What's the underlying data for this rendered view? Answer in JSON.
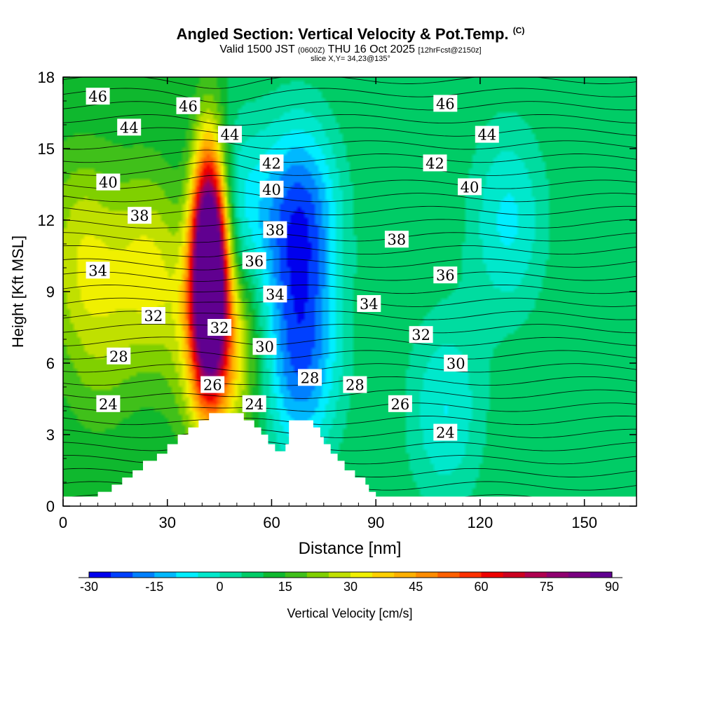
{
  "header": {
    "title": "Angled Section: Vertical Velocity & Pot.Temp.",
    "title_unit": "(C)",
    "valid_prefix": "Valid 1500 JST",
    "valid_z": "(0600Z)",
    "valid_date": "THU 16 Oct 2025",
    "forecast": "[12hrFcst@2150z]",
    "slice": "slice X,Y= 34,23@135°"
  },
  "chart_data": {
    "type": "heatmap",
    "xlabel": "Distance [nm]",
    "ylabel": "Height [Kft MSL]",
    "xlim": [
      0,
      165
    ],
    "ylim": [
      0,
      18
    ],
    "x_ticks": [
      "0",
      "30",
      "60",
      "90",
      "120",
      "150"
    ],
    "y_ticks": [
      "0",
      "3",
      "6",
      "9",
      "12",
      "15",
      "18"
    ],
    "colorbar": {
      "label": "Vertical Velocity [cm/s]",
      "min": -30,
      "max": 90,
      "step": 5,
      "tick_labels": [
        "-30",
        "-15",
        "0",
        "15",
        "30",
        "45",
        "60",
        "75",
        "90"
      ],
      "colors": [
        "#0000ee",
        "#0040ff",
        "#0080ff",
        "#00b8ff",
        "#00eeff",
        "#00e8cc",
        "#00dca0",
        "#00cc66",
        "#0fb82e",
        "#40c01a",
        "#80d000",
        "#c0e000",
        "#f0f000",
        "#ffd000",
        "#ffb000",
        "#ff8c00",
        "#ff6000",
        "#ff3000",
        "#ee0000",
        "#cc0020",
        "#b00050",
        "#900070",
        "#7a0080",
        "#600090"
      ]
    },
    "terrain_kft": [
      [
        0,
        0.4
      ],
      [
        10,
        0.4
      ],
      [
        10,
        0.6
      ],
      [
        14,
        0.6
      ],
      [
        14,
        0.9
      ],
      [
        17,
        0.9
      ],
      [
        17,
        1.2
      ],
      [
        20,
        1.2
      ],
      [
        20,
        1.5
      ],
      [
        23,
        1.5
      ],
      [
        23,
        1.9
      ],
      [
        27,
        1.9
      ],
      [
        27,
        2.2
      ],
      [
        30,
        2.2
      ],
      [
        30,
        2.6
      ],
      [
        33,
        2.6
      ],
      [
        33,
        3.0
      ],
      [
        36,
        3.0
      ],
      [
        36,
        3.3
      ],
      [
        39,
        3.3
      ],
      [
        39,
        3.6
      ],
      [
        42,
        3.6
      ],
      [
        42,
        3.9
      ],
      [
        52,
        3.9
      ],
      [
        52,
        3.6
      ],
      [
        55,
        3.6
      ],
      [
        55,
        3.3
      ],
      [
        57,
        3.3
      ],
      [
        57,
        3.0
      ],
      [
        59,
        3.0
      ],
      [
        59,
        2.6
      ],
      [
        61,
        2.6
      ],
      [
        61,
        2.3
      ],
      [
        64,
        2.3
      ],
      [
        64,
        2.6
      ],
      [
        65,
        2.6
      ],
      [
        65,
        3.6
      ],
      [
        72,
        3.6
      ],
      [
        72,
        3.3
      ],
      [
        74,
        3.3
      ],
      [
        74,
        2.9
      ],
      [
        75,
        2.9
      ],
      [
        75,
        2.6
      ],
      [
        77,
        2.6
      ],
      [
        77,
        2.2
      ],
      [
        79,
        2.2
      ],
      [
        79,
        1.9
      ],
      [
        81,
        1.9
      ],
      [
        81,
        1.5
      ],
      [
        84,
        1.5
      ],
      [
        84,
        1.2
      ],
      [
        87,
        1.2
      ],
      [
        87,
        0.9
      ],
      [
        88,
        0.9
      ],
      [
        88,
        0.6
      ],
      [
        90,
        0.6
      ],
      [
        90,
        0.4
      ],
      [
        165,
        0.4
      ]
    ],
    "w_blobs_cm_s": [
      {
        "x": 42,
        "y": 9.5,
        "peak": 90
      },
      {
        "x": 42,
        "y": 11.5,
        "peak": 55
      },
      {
        "x": 45,
        "y": 7,
        "peak": 45
      },
      {
        "x": 25,
        "y": 10,
        "peak": 30
      },
      {
        "x": 5,
        "y": 11,
        "peak": 26
      },
      {
        "x": 10,
        "y": 7,
        "peak": 20
      },
      {
        "x": 48,
        "y": 12,
        "peak": -8
      },
      {
        "x": 68,
        "y": 12,
        "peak": -22
      },
      {
        "x": 68,
        "y": 6,
        "peak": -18
      },
      {
        "x": 128,
        "y": 12,
        "peak": -6
      },
      {
        "x": 110,
        "y": 4,
        "peak": -5
      }
    ],
    "isotherm_labels_C": [
      {
        "text": "46",
        "x": 10,
        "y": 17.2
      },
      {
        "text": "46",
        "x": 36,
        "y": 16.8
      },
      {
        "text": "46",
        "x": 110,
        "y": 16.9
      },
      {
        "text": "44",
        "x": 19,
        "y": 15.9
      },
      {
        "text": "44",
        "x": 48,
        "y": 15.6
      },
      {
        "text": "44",
        "x": 122,
        "y": 15.6
      },
      {
        "text": "42",
        "x": 60,
        "y": 14.4
      },
      {
        "text": "42",
        "x": 107,
        "y": 14.4
      },
      {
        "text": "40",
        "x": 13,
        "y": 13.6
      },
      {
        "text": "40",
        "x": 60,
        "y": 13.3
      },
      {
        "text": "40",
        "x": 117,
        "y": 13.4
      },
      {
        "text": "38",
        "x": 22,
        "y": 12.2
      },
      {
        "text": "38",
        "x": 61,
        "y": 11.6
      },
      {
        "text": "38",
        "x": 96,
        "y": 11.2
      },
      {
        "text": "36",
        "x": 55,
        "y": 10.3
      },
      {
        "text": "36",
        "x": 110,
        "y": 9.7
      },
      {
        "text": "34",
        "x": 10,
        "y": 9.9
      },
      {
        "text": "34",
        "x": 61,
        "y": 8.9
      },
      {
        "text": "34",
        "x": 88,
        "y": 8.5
      },
      {
        "text": "32",
        "x": 26,
        "y": 8.0
      },
      {
        "text": "32",
        "x": 45,
        "y": 7.5
      },
      {
        "text": "32",
        "x": 103,
        "y": 7.2
      },
      {
        "text": "30",
        "x": 58,
        "y": 6.7
      },
      {
        "text": "30",
        "x": 113,
        "y": 6.0
      },
      {
        "text": "28",
        "x": 16,
        "y": 6.3
      },
      {
        "text": "28",
        "x": 71,
        "y": 5.4
      },
      {
        "text": "28",
        "x": 84,
        "y": 5.1
      },
      {
        "text": "26",
        "x": 43,
        "y": 5.1
      },
      {
        "text": "26",
        "x": 97,
        "y": 4.3
      },
      {
        "text": "24",
        "x": 13,
        "y": 4.3
      },
      {
        "text": "24",
        "x": 55,
        "y": 4.3
      },
      {
        "text": "24",
        "x": 110,
        "y": 3.1
      }
    ]
  }
}
